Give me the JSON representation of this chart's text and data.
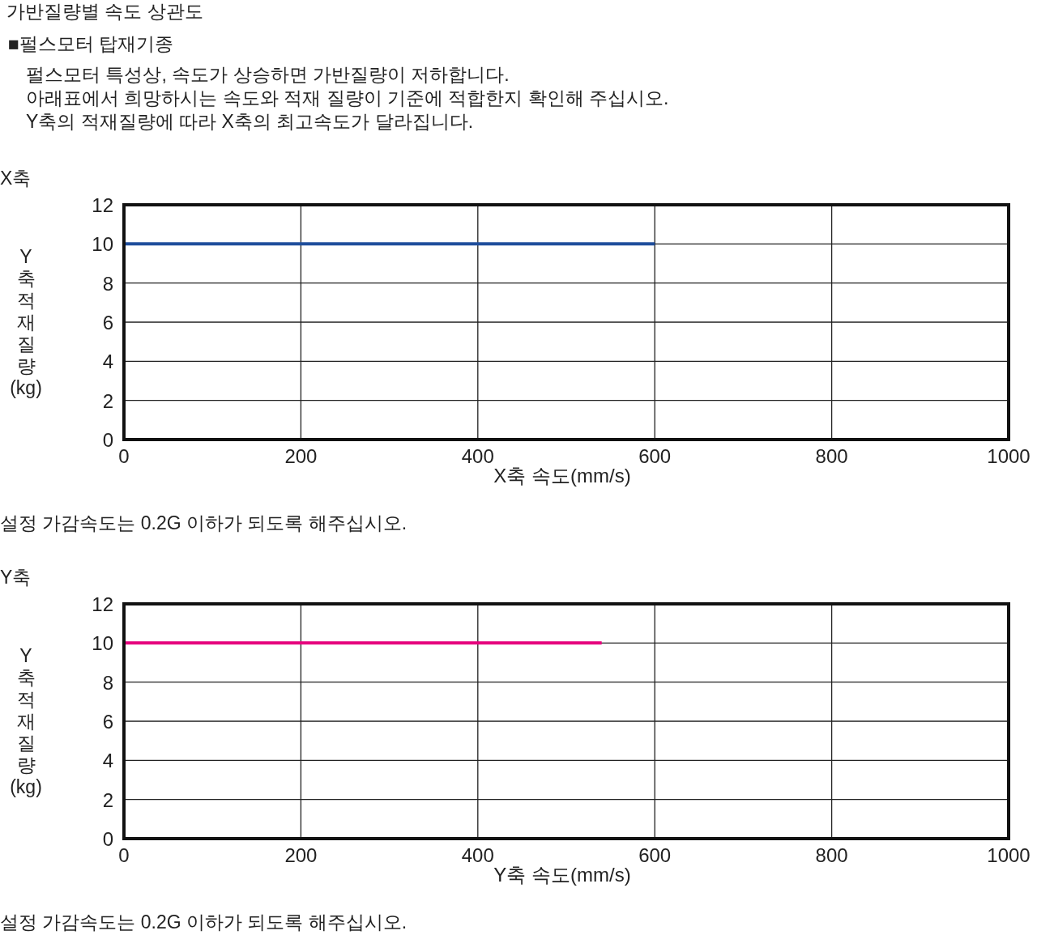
{
  "chart_data": [
    {
      "type": "other",
      "title": "가반질량별 속도 상관도",
      "subtitle": "■펄스모터 탑재기종",
      "annotations": [
        "펄스모터 특성상, 속도가 상승하면 가반질량이 저하합니다.",
        "아래표에서 희망하시는 속도와 적재 질량이 기준에 적합한지 확인해 주십시오.",
        "Y축의 적재질량에 따라 X축의 최고속도가 달라집니다."
      ]
    },
    {
      "type": "line",
      "title": "X축",
      "xlabel": "X축 속도(mm/s)",
      "ylabel": "Y축적재질량(kg)",
      "x": [
        0,
        600
      ],
      "xlim": [
        0,
        1000
      ],
      "xticks": [
        0,
        200,
        400,
        600,
        800,
        1000
      ],
      "ylim": [
        0,
        12
      ],
      "yticks": [
        0,
        2,
        4,
        6,
        8,
        10,
        12
      ],
      "grid": true,
      "marker": "none",
      "line_style": "solid",
      "series": [
        {
          "color": "#1f4e9c",
          "values": [
            10,
            10
          ]
        }
      ],
      "annotations": [
        "설정 가감속도는 0.2G 이하가 되도록 해주십시오."
      ]
    },
    {
      "type": "line",
      "title": "Y축",
      "xlabel": "Y축 속도(mm/s)",
      "ylabel": "Y축적재질량(kg)",
      "x": [
        0,
        540
      ],
      "xlim": [
        0,
        1000
      ],
      "xticks": [
        0,
        200,
        400,
        600,
        800,
        1000
      ],
      "ylim": [
        0,
        12
      ],
      "yticks": [
        0,
        2,
        4,
        6,
        8,
        10,
        12
      ],
      "grid": true,
      "marker": "none",
      "line_style": "solid",
      "series": [
        {
          "color": "#e6007e",
          "values": [
            10,
            10
          ]
        }
      ],
      "annotations": [
        "설정 가감속도는 0.2G 이하가 되도록 해주십시오."
      ]
    }
  ]
}
